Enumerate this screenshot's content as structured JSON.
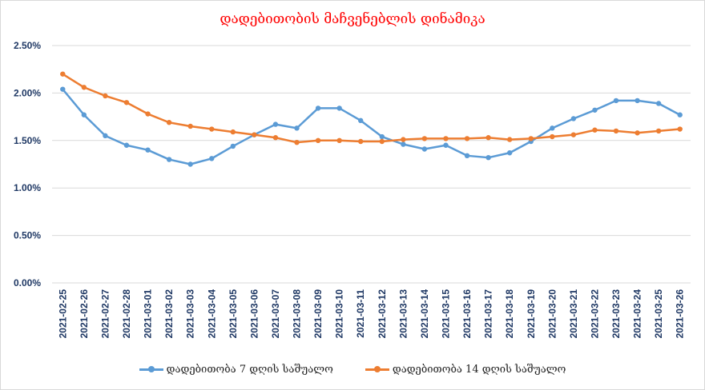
{
  "chart_data": {
    "type": "line",
    "title": "დადებითობის მაჩვენებლის დინამიკა",
    "xlabel": "",
    "ylabel": "",
    "ylim": [
      0,
      2.5
    ],
    "y_ticks": [
      "0.00%",
      "0.50%",
      "1.00%",
      "1.50%",
      "2.00%",
      "2.50%"
    ],
    "y_tick_values": [
      0,
      0.5,
      1.0,
      1.5,
      2.0,
      2.5
    ],
    "grid": true,
    "legend_position": "bottom",
    "categories": [
      "2021-02-25",
      "2021-02-26",
      "2021-02-27",
      "2021-02-28",
      "2021-03-01",
      "2021-03-02",
      "2021-03-03",
      "2021-03-04",
      "2021-03-05",
      "2021-03-06",
      "2021-03-07",
      "2021-03-08",
      "2021-03-09",
      "2021-03-10",
      "2021-03-11",
      "2021-03-12",
      "2021-03-13",
      "2021-03-14",
      "2021-03-15",
      "2021-03-16",
      "2021-03-17",
      "2021-03-18",
      "2021-03-19",
      "2021-03-20",
      "2021-03-21",
      "2021-03-22",
      "2021-03-23",
      "2021-03-24",
      "2021-03-25",
      "2021-03-26"
    ],
    "series": [
      {
        "name": "დადებითობა 7 დღის საშუალო",
        "color": "#5b9bd5",
        "values": [
          2.04,
          1.77,
          1.55,
          1.45,
          1.4,
          1.3,
          1.25,
          1.31,
          1.44,
          1.56,
          1.67,
          1.63,
          1.84,
          1.84,
          1.71,
          1.54,
          1.46,
          1.41,
          1.45,
          1.34,
          1.32,
          1.37,
          1.49,
          1.63,
          1.73,
          1.82,
          1.92,
          1.92,
          1.89,
          1.77
        ]
      },
      {
        "name": "დადებითობა 14 დღის საშუალო",
        "color": "#ed7d31",
        "values": [
          2.2,
          2.06,
          1.97,
          1.9,
          1.78,
          1.69,
          1.65,
          1.62,
          1.59,
          1.56,
          1.53,
          1.48,
          1.5,
          1.5,
          1.49,
          1.49,
          1.51,
          1.52,
          1.52,
          1.52,
          1.53,
          1.51,
          1.52,
          1.54,
          1.56,
          1.61,
          1.6,
          1.58,
          1.6,
          1.62
        ]
      }
    ]
  }
}
